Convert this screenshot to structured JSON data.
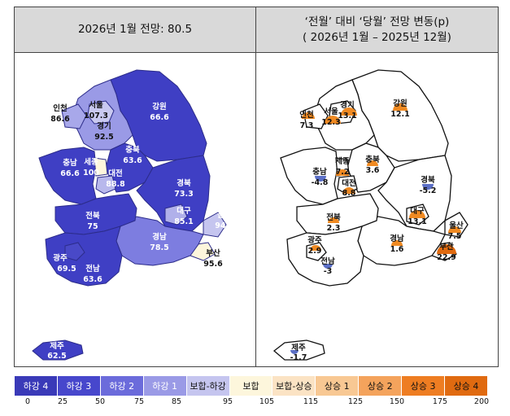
{
  "left_panel": {
    "title": "2026년 1월 전망: 80.5"
  },
  "right_panel": {
    "title_line1": "‘전월’ 대비 ‘당월’ 전망 변동(p)",
    "title_line2": "( 2026년 1월 –   2025년 12월)"
  },
  "regions_left": [
    {
      "key": "incheon",
      "name": "인천",
      "value": "86.6"
    },
    {
      "key": "seoul",
      "name": "서울",
      "value": "107.3"
    },
    {
      "key": "gyeonggi",
      "name": "경기",
      "value": "92.5"
    },
    {
      "key": "gangwon",
      "name": "강원",
      "value": "66.6"
    },
    {
      "key": "chungbuk",
      "name": "충북",
      "value": "63.6"
    },
    {
      "key": "chungnam",
      "name": "충남",
      "value": "66.6"
    },
    {
      "key": "sejong",
      "name": "세종",
      "value": "100"
    },
    {
      "key": "daejeon",
      "name": "대전",
      "value": "88.8"
    },
    {
      "key": "gyeongbuk",
      "name": "경북",
      "value": "73.3"
    },
    {
      "key": "daegu",
      "name": "대구",
      "value": "85.1"
    },
    {
      "key": "ulsan",
      "name": "울산",
      "value": "94.1"
    },
    {
      "key": "jeonbuk",
      "name": "전북",
      "value": "75"
    },
    {
      "key": "gyeongnam",
      "name": "경남",
      "value": "78.5"
    },
    {
      "key": "busan",
      "name": "부산",
      "value": "95.6"
    },
    {
      "key": "gwangju",
      "name": "광주",
      "value": "69.5"
    },
    {
      "key": "jeonnam",
      "name": "전남",
      "value": "63.6"
    },
    {
      "key": "jeju",
      "name": "제주",
      "value": "62.5"
    }
  ],
  "regions_right": [
    {
      "key": "incheon",
      "name": "인천",
      "value": "7.3"
    },
    {
      "key": "seoul",
      "name": "서울",
      "value": "12.3"
    },
    {
      "key": "gyeonggi",
      "name": "경기",
      "value": "13.1"
    },
    {
      "key": "gangwon",
      "name": "강원",
      "value": "12.1"
    },
    {
      "key": "sejong",
      "name": "세종",
      "value": "7.2"
    },
    {
      "key": "chungbuk",
      "name": "충북",
      "value": "3.6"
    },
    {
      "key": "chungnam",
      "name": "충남",
      "value": "-4.8"
    },
    {
      "key": "daejeon",
      "name": "대전",
      "value": "8.8"
    },
    {
      "key": "gyeongbuk",
      "name": "경북",
      "value": "-5.2"
    },
    {
      "key": "jeonbuk",
      "name": "전북",
      "value": "2.3"
    },
    {
      "key": "daegu",
      "name": "대구",
      "value": "13.1"
    },
    {
      "key": "ulsan",
      "name": "울산",
      "value": "7.5"
    },
    {
      "key": "gwangju",
      "name": "광주",
      "value": "2.9"
    },
    {
      "key": "gyeongnam",
      "name": "경남",
      "value": "1.6"
    },
    {
      "key": "busan",
      "name": "부산",
      "value": "22.9"
    },
    {
      "key": "jeonnam",
      "name": "전남",
      "value": "-3"
    },
    {
      "key": "jeju",
      "name": "제주",
      "value": "-1.7"
    }
  ],
  "legend": {
    "items": [
      {
        "label": "하강 4",
        "color": "#3a3ab8",
        "text_color": "#ffffff"
      },
      {
        "label": "하강 3",
        "color": "#4747cc",
        "text_color": "#ffffff"
      },
      {
        "label": "하강 2",
        "color": "#6b6bdb",
        "text_color": "#ffffff"
      },
      {
        "label": "하강 1",
        "color": "#9a9ae6",
        "text_color": "#ffffff"
      },
      {
        "label": "보합-하강",
        "color": "#c5c5ef",
        "text_color": "#111111"
      },
      {
        "label": "보합",
        "color": "#fdf6dc",
        "text_color": "#111111"
      },
      {
        "label": "보합-상승",
        "color": "#fbe3c4",
        "text_color": "#111111"
      },
      {
        "label": "상승 1",
        "color": "#f8c893",
        "text_color": "#111111"
      },
      {
        "label": "상승 2",
        "color": "#f4a35c",
        "text_color": "#111111"
      },
      {
        "label": "상승 3",
        "color": "#ee7d22",
        "text_color": "#111111"
      },
      {
        "label": "상승 4",
        "color": "#e06a10",
        "text_color": "#111111"
      }
    ],
    "ticks": [
      "0",
      "25",
      "50",
      "75",
      "85",
      "95",
      "105",
      "115",
      "125",
      "150",
      "175",
      "200"
    ]
  },
  "colors": {
    "down": "#5b6fc6",
    "up": "#f08a22"
  }
}
